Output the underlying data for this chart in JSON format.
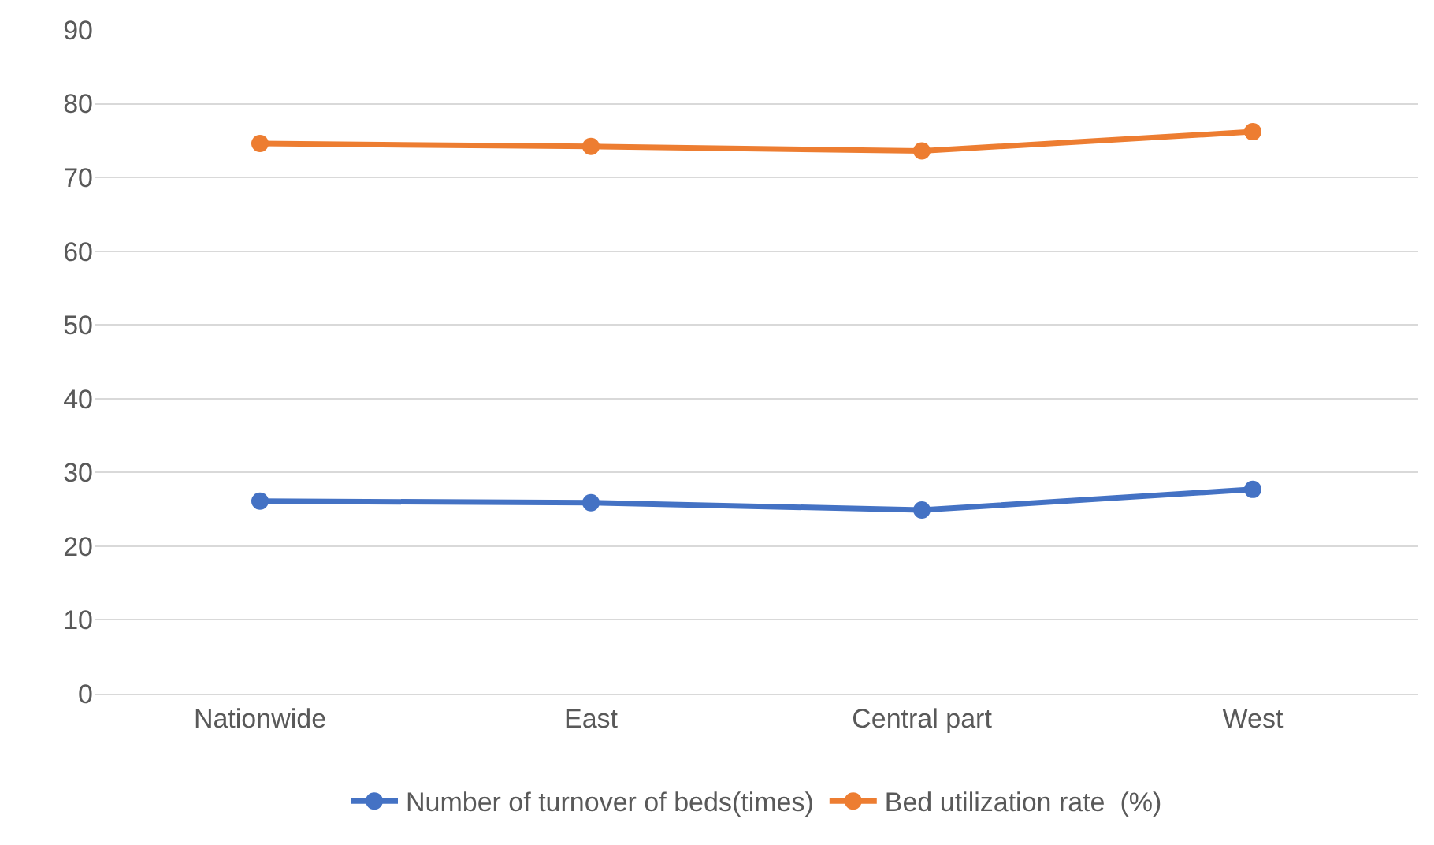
{
  "chart_data": {
    "type": "line",
    "categories": [
      "Nationwide",
      "East",
      "Central part",
      "West"
    ],
    "series": [
      {
        "name": "Number of turnover of beds(times)",
        "color": "#4472c4",
        "values": [
          26.1,
          25.9,
          24.9,
          27.7
        ]
      },
      {
        "name": "Bed utilization rate  (%)",
        "color": "#ed7d31",
        "values": [
          74.6,
          74.2,
          73.6,
          76.2
        ]
      }
    ],
    "ylim": [
      0,
      90
    ],
    "yticks": [
      0,
      10,
      20,
      30,
      40,
      50,
      60,
      70,
      80,
      90
    ],
    "grid": "y",
    "legend": "bottom",
    "marker": "circle",
    "line_style": "solid"
  }
}
